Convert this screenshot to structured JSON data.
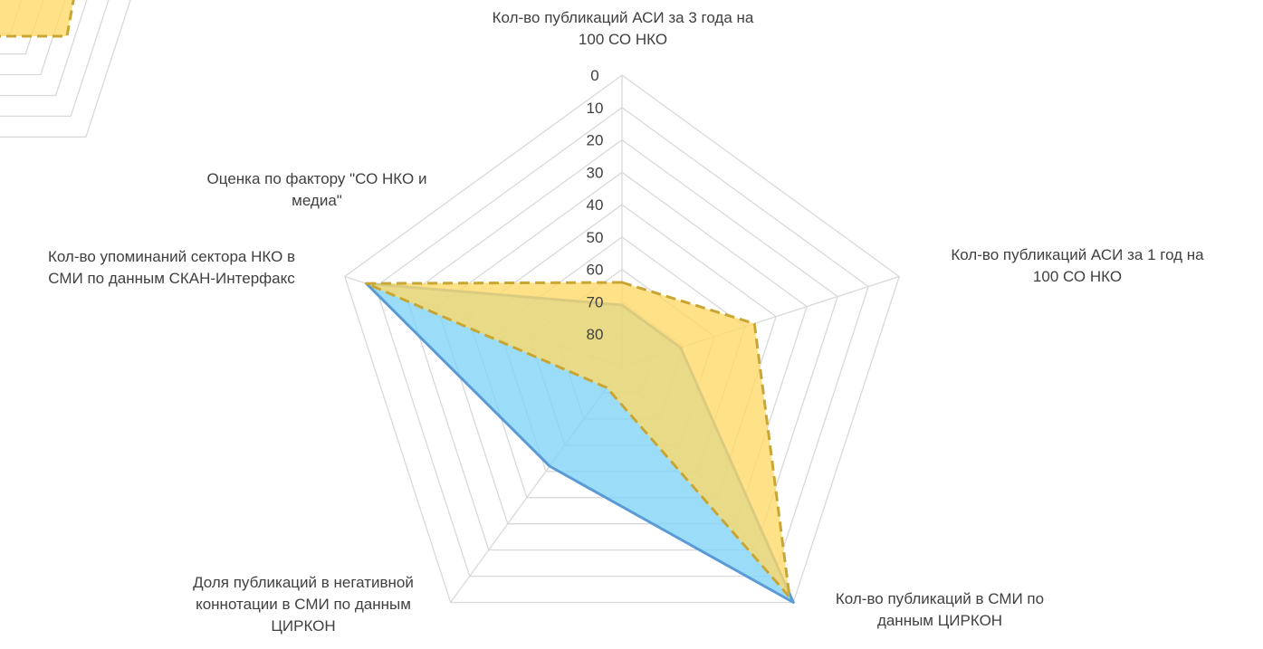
{
  "chart_data": [
    {
      "type": "radar",
      "axis_labels": [
        [
          "Кол-во публикаций АСИ за 3 года на",
          "100 СО НКО"
        ],
        [
          "Кол-во публикаций АСИ за 1 год на",
          "100 СО НКО"
        ],
        [
          "Кол-во публикаций в СМИ по",
          "данным ЦИРКОН"
        ],
        [
          "Доля публикаций в негативной",
          "коннотации в СМИ по данным",
          "ЦИРКОН"
        ],
        [
          "Кол-во упоминаний сектора НКО в",
          "СМИ по данным СКАН-Интерфакс"
        ]
      ],
      "ticks": [
        "0",
        "10",
        "20",
        "30",
        "40",
        "50",
        "60",
        "70",
        "80"
      ],
      "rlim": [
        0,
        90
      ],
      "reversed_scale": true,
      "grid": true,
      "series": [
        {
          "values": [
            71,
            71,
            0,
            52,
            7
          ],
          "color": "#5b9bd5",
          "fill": "#7fd3f7"
        },
        {
          "values": [
            64,
            47,
            2,
            82,
            7
          ],
          "color": "#c9a634",
          "fill": "#ffd966",
          "dash": true
        }
      ]
    },
    {
      "type": "radar",
      "partial": true,
      "axis_labels": [
        [
          "Оценка по фактору \"СО НКО и",
          "медиа\""
        ]
      ],
      "grid": true,
      "series": [
        {
          "color": "#c9a634",
          "fill": "#ffd966",
          "dash": true
        }
      ]
    }
  ]
}
